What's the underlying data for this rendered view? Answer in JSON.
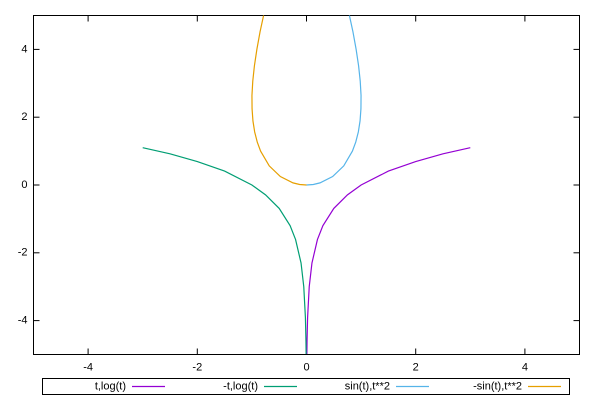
{
  "chart_data": {
    "type": "line",
    "series": [
      {
        "name": "t,log(t)",
        "color": "#9400d3",
        "x": [
          0.0067,
          0.01,
          0.02,
          0.05,
          0.1,
          0.2,
          0.3,
          0.5,
          0.75,
          1,
          1.5,
          2,
          2.5,
          3
        ],
        "values": [
          -5,
          -4.61,
          -3.91,
          -3.0,
          -2.3,
          -1.61,
          -1.2,
          -0.69,
          -0.29,
          0,
          0.41,
          0.69,
          0.92,
          1.1
        ]
      },
      {
        "name": "-t,log(t)",
        "color": "#009e73",
        "x": [
          -0.0067,
          -0.01,
          -0.02,
          -0.05,
          -0.1,
          -0.2,
          -0.3,
          -0.5,
          -0.75,
          -1,
          -1.5,
          -2,
          -2.5,
          -3
        ],
        "values": [
          -5,
          -4.61,
          -3.91,
          -3.0,
          -2.3,
          -1.61,
          -1.2,
          -0.69,
          -0.29,
          0,
          0.41,
          0.69,
          0.92,
          1.1
        ]
      },
      {
        "name": "sin(t),t**2",
        "color": "#56b4e9",
        "x": [
          0,
          0.125,
          0.247,
          0.479,
          0.682,
          0.841,
          0.902,
          0.949,
          0.981,
          0.997,
          0.999,
          0.984,
          0.954,
          0.909,
          0.851,
          0.786
        ],
        "values": [
          0,
          0.0156,
          0.0625,
          0.25,
          0.5625,
          1,
          1.266,
          1.5625,
          1.891,
          2.25,
          2.641,
          3.0625,
          3.516,
          4,
          4.516,
          5
        ]
      },
      {
        "name": "-sin(t),t**2",
        "color": "#e69f00",
        "x": [
          0,
          -0.125,
          -0.247,
          -0.479,
          -0.682,
          -0.841,
          -0.902,
          -0.949,
          -0.981,
          -0.997,
          -0.999,
          -0.984,
          -0.954,
          -0.909,
          -0.851,
          -0.786
        ],
        "values": [
          0,
          0.0156,
          0.0625,
          0.25,
          0.5625,
          1,
          1.266,
          1.5625,
          1.891,
          2.25,
          2.641,
          3.0625,
          3.516,
          4,
          4.516,
          5
        ]
      }
    ],
    "xlim": [
      -5,
      5
    ],
    "xticks": [
      -4,
      -2,
      0,
      2,
      4
    ],
    "ylim": [
      -5,
      5
    ],
    "yticks": [
      -4,
      -2,
      0,
      2,
      4
    ],
    "grid": false
  }
}
